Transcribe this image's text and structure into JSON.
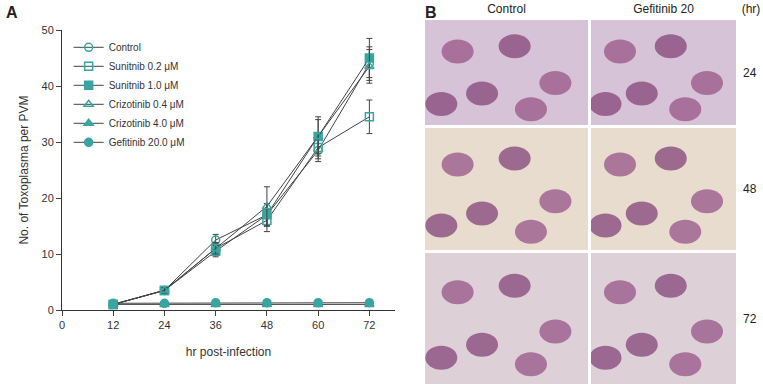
{
  "chart_data": {
    "type": "line",
    "panel_label": "A",
    "x_label": "hr post-infection",
    "y_label": "No. of Toxoplasma per PVM",
    "x": [
      12,
      24,
      36,
      48,
      60,
      72
    ],
    "xlim": [
      0,
      78
    ],
    "xticks": [
      0,
      12,
      24,
      36,
      48,
      60,
      72
    ],
    "ylim": [
      0,
      50
    ],
    "yticks": [
      0,
      10,
      20,
      30,
      40,
      50
    ],
    "legend": "upper left",
    "grid": false,
    "series": [
      {
        "name": "Control",
        "color": "#3aa5a0",
        "marker": "circle-open",
        "values": [
          1,
          3.5,
          12.5,
          17,
          28.5,
          44
        ],
        "errors": [
          0.3,
          0.5,
          1,
          2,
          2,
          3
        ]
      },
      {
        "name": "Sunitnib 0.2 μM",
        "color": "#3aa5a0",
        "marker": "square-open",
        "values": [
          1,
          3.5,
          11,
          16,
          29,
          34.5
        ],
        "errors": [
          0.3,
          0.5,
          1,
          2,
          2,
          3
        ]
      },
      {
        "name": "Sunitnib 1.0 μM",
        "color": "#3aa5a0",
        "marker": "square",
        "values": [
          1,
          3.5,
          10.5,
          17,
          31,
          45
        ],
        "errors": [
          0.3,
          0.5,
          1,
          2,
          3.5,
          3.5
        ]
      },
      {
        "name": "Crizotinib 0.4 μM",
        "color": "#3aa5a0",
        "marker": "triangle-up-open",
        "values": [
          1,
          3.5,
          11,
          18.5,
          31,
          43.5
        ],
        "errors": [
          0.3,
          0.5,
          1,
          3.5,
          3,
          3
        ]
      },
      {
        "name": "Crizotinib 4.0 μM",
        "color": "#3aa5a0",
        "marker": "triangle-up",
        "values": [
          1,
          1,
          1,
          1,
          1,
          1
        ]
      },
      {
        "name": "Gefitinib 20.0 μM",
        "color": "#3aa5a0",
        "marker": "circle",
        "values": [
          1.2,
          1.2,
          1.3,
          1.3,
          1.3,
          1.3
        ]
      }
    ]
  },
  "micrographs": {
    "panel_label": "B",
    "columns": [
      "Control",
      "Gefitinib 20"
    ],
    "unit": "(hr)",
    "rows": [
      "24",
      "48",
      "72"
    ]
  }
}
